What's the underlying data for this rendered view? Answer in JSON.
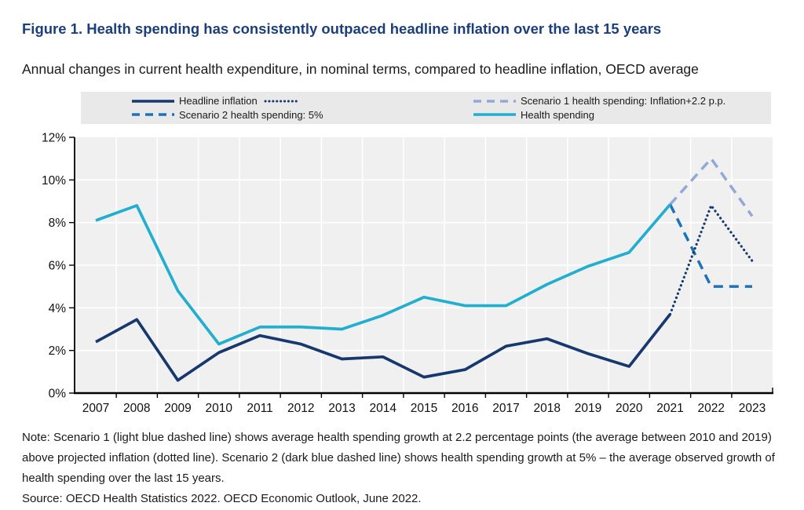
{
  "figure": {
    "title": "Figure 1. Health spending has consistently outpaced headline inflation over the last 15 years",
    "subtitle": "Annual changes in current health expenditure, in nominal terms, compared to headline inflation, OECD average",
    "note": "Note: Scenario 1 (light blue dashed line) shows average health spending growth at 2.2 percentage points (the average between 2010 and 2019) above projected inflation (dotted line). Scenario 2 (dark blue dashed line) shows health spending growth at 5% – the average observed growth of health spending over the last 15 years.",
    "source": "Source: OECD Health Statistics 2022. OECD Economic Outlook, June 2022."
  },
  "colors": {
    "title": "#1b3f7d",
    "legend_bg": "#e9e9e9",
    "plot_bg": "#f0f0f0",
    "grid": "#ffffff",
    "axis": "#000000",
    "navy": "#17386e",
    "cyan": "#22aecf",
    "scenario1_light_blue": "#92a9d7",
    "scenario2_blue": "#1e72b9"
  },
  "legend": {
    "items": [
      {
        "label": "Headline inflation",
        "color": "#17386e",
        "line_style": "solid",
        "has_projection_sample": true
      },
      {
        "label": "Scenario 2 health spending: 5%",
        "color": "#1e72b9",
        "line_style": "dashed"
      },
      {
        "label": "Scenario 1 health spending: Inflation+2.2 p.p.",
        "color": "#92a9d7",
        "line_style": "dashed"
      },
      {
        "label": "Health spending",
        "color": "#22aecf",
        "line_style": "solid"
      }
    ]
  },
  "chart_data": {
    "type": "line",
    "x_years": [
      2007,
      2008,
      2009,
      2010,
      2011,
      2012,
      2013,
      2014,
      2015,
      2016,
      2017,
      2018,
      2019,
      2020,
      2021,
      2022,
      2023
    ],
    "ylim": [
      0,
      12
    ],
    "ytick_step": 2,
    "ytick_suffix": "%",
    "grid": true,
    "legend_position": "top",
    "series": [
      {
        "name": "Scenario 1 health spending: Inflation+2.2 p.p.",
        "color": "#92a9d7",
        "dash": "dashed",
        "years": [
          2021,
          2022,
          2023
        ],
        "values": [
          8.85,
          11.0,
          8.3
        ]
      },
      {
        "name": "Scenario 2 health spending: 5%",
        "color": "#1e72b9",
        "dash": "dashed",
        "years": [
          2021,
          2022,
          2023
        ],
        "values": [
          8.85,
          5.0,
          5.0
        ]
      },
      {
        "name": "Headline inflation (projected, dotted)",
        "color": "#17386e",
        "dash": "dotted",
        "years": [
          2021,
          2022,
          2023
        ],
        "values": [
          3.7,
          8.8,
          6.2
        ]
      },
      {
        "name": "Headline inflation",
        "color": "#17386e",
        "dash": "solid",
        "years": [
          2007,
          2008,
          2009,
          2010,
          2011,
          2012,
          2013,
          2014,
          2015,
          2016,
          2017,
          2018,
          2019,
          2020,
          2021
        ],
        "values": [
          2.4,
          3.45,
          0.6,
          1.9,
          2.7,
          2.3,
          1.6,
          1.7,
          0.75,
          1.1,
          2.2,
          2.55,
          1.85,
          1.25,
          3.7
        ]
      },
      {
        "name": "Health spending",
        "color": "#22aecf",
        "dash": "solid",
        "years": [
          2007,
          2008,
          2009,
          2010,
          2011,
          2012,
          2013,
          2014,
          2015,
          2016,
          2017,
          2018,
          2019,
          2020,
          2021
        ],
        "values": [
          8.1,
          8.8,
          4.8,
          2.3,
          3.1,
          3.1,
          3.0,
          3.65,
          4.5,
          4.1,
          4.1,
          5.1,
          5.95,
          6.6,
          8.85
        ]
      }
    ]
  }
}
